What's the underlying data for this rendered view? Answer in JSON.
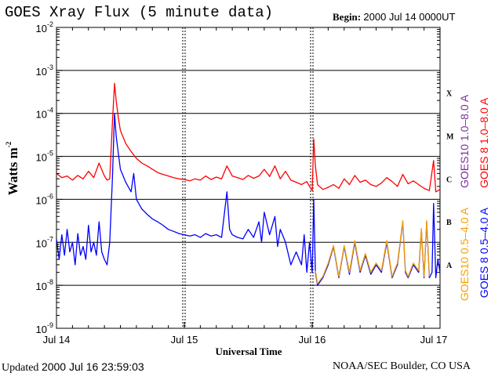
{
  "header": {
    "title": "GOES Xray Flux (5 minute data)",
    "begin_label": "Begin:",
    "begin_value": "2000 Jul 14 0000UT"
  },
  "footer": {
    "updated_label": "Updated",
    "updated_value": "2000 Jul 16 23:59:03",
    "source": "NOAA/SEC Boulder, CO USA"
  },
  "colors": {
    "goes8_long": "#ff0000",
    "goes10_long": "#7b2fa0",
    "goes8_short": "#0000ff",
    "goes10_short": "#f5a000",
    "grid": "#000000"
  },
  "chart_data": {
    "type": "line",
    "title": "GOES Xray Flux (5 minute data)",
    "xlabel": "Universal Time",
    "ylabel": "Watts m",
    "ylabel_sup": "-2",
    "yscale": "log",
    "ylim": [
      1e-09,
      0.01
    ],
    "xlim": [
      0,
      72
    ],
    "x_units": "hours since 2000 Jul 14 0000UT",
    "y_ticks": [
      {
        "base": "10",
        "exp": "-9",
        "value": 1e-09
      },
      {
        "base": "10",
        "exp": "-8",
        "value": 1e-08
      },
      {
        "base": "10",
        "exp": "-7",
        "value": 1e-07
      },
      {
        "base": "10",
        "exp": "-6",
        "value": 1e-06
      },
      {
        "base": "10",
        "exp": "-5",
        "value": 1e-05
      },
      {
        "base": "10",
        "exp": "-4",
        "value": 0.0001
      },
      {
        "base": "10",
        "exp": "-3",
        "value": 0.001
      },
      {
        "base": "10",
        "exp": "-2",
        "value": 0.01
      }
    ],
    "x_ticks": [
      {
        "label": "Jul 14",
        "x": 0
      },
      {
        "label": "Jul 15",
        "x": 24
      },
      {
        "label": "Jul 16",
        "x": 48
      },
      {
        "label": "Jul 17",
        "x": 72
      }
    ],
    "flare_classes": [
      {
        "label": "A",
        "value": 3e-08
      },
      {
        "label": "B",
        "value": 3e-07
      },
      {
        "label": "C",
        "value": 3e-06
      },
      {
        "label": "M",
        "value": 3e-05
      },
      {
        "label": "X",
        "value": 0.0003
      }
    ],
    "legend": [
      {
        "label": "GOES10 1.0–8.0 A",
        "color": "#7b2fa0"
      },
      {
        "label": "GOES 8 1.0–8.0 A",
        "color": "#ff0000"
      },
      {
        "label": "GOES10 0.5–4.0 A",
        "color": "#f5a000"
      },
      {
        "label": "GOES 8 0.5–4.0 A",
        "color": "#0000ff"
      }
    ],
    "series": [
      {
        "name": "GOES 8 1.0-8.0 A",
        "color": "#ff0000",
        "points": [
          [
            0,
            4e-06
          ],
          [
            1,
            3.2e-06
          ],
          [
            2,
            3.5e-06
          ],
          [
            3,
            2.8e-06
          ],
          [
            4,
            3.6e-06
          ],
          [
            5,
            3e-06
          ],
          [
            6,
            4.5e-06
          ],
          [
            7,
            3.2e-06
          ],
          [
            8,
            7e-06
          ],
          [
            9,
            3.5e-06
          ],
          [
            9.5,
            2.8e-06
          ],
          [
            10,
            3e-06
          ],
          [
            10.5,
            6e-05
          ],
          [
            10.9,
            0.0005
          ],
          [
            11.2,
            0.0002
          ],
          [
            11.6,
            8e-05
          ],
          [
            12,
            4e-05
          ],
          [
            13,
            2e-05
          ],
          [
            14,
            1.3e-05
          ],
          [
            15,
            9e-06
          ],
          [
            16,
            7e-06
          ],
          [
            17,
            6e-06
          ],
          [
            18,
            5e-06
          ],
          [
            19,
            4.2e-06
          ],
          [
            20,
            3.8e-06
          ],
          [
            21,
            3.5e-06
          ],
          [
            22,
            3.2e-06
          ],
          [
            23,
            3e-06
          ],
          [
            24,
            2.9e-06
          ],
          [
            25,
            2.7e-06
          ],
          [
            26,
            3e-06
          ],
          [
            27,
            2.8e-06
          ],
          [
            28,
            3.5e-06
          ],
          [
            29,
            2.9e-06
          ],
          [
            30,
            3.3e-06
          ],
          [
            31,
            3e-06
          ],
          [
            32,
            6e-06
          ],
          [
            33,
            3.5e-06
          ],
          [
            34,
            3.2e-06
          ],
          [
            35,
            2.9e-06
          ],
          [
            36,
            3.6e-06
          ],
          [
            37,
            3.1e-06
          ],
          [
            38,
            3.5e-06
          ],
          [
            39,
            5e-06
          ],
          [
            40,
            3.4e-06
          ],
          [
            41,
            6e-06
          ],
          [
            42,
            3e-06
          ],
          [
            43,
            4.5e-06
          ],
          [
            44,
            2.8e-06
          ],
          [
            45,
            2.5e-06
          ],
          [
            46,
            2.2e-06
          ],
          [
            47,
            2.6e-06
          ],
          [
            47.5,
            2e-06
          ],
          [
            48,
            1.6e-06
          ],
          [
            48.3,
            2.5e-05
          ],
          [
            48.6,
            6e-06
          ],
          [
            49,
            2.2e-06
          ],
          [
            50,
            1.7e-06
          ],
          [
            51,
            1.9e-06
          ],
          [
            52,
            2.2e-06
          ],
          [
            53,
            1.8e-06
          ],
          [
            54,
            3e-06
          ],
          [
            55,
            2.2e-06
          ],
          [
            56,
            3.6e-06
          ],
          [
            57,
            2.5e-06
          ],
          [
            58,
            2.8e-06
          ],
          [
            59,
            2.2e-06
          ],
          [
            60,
            2e-06
          ],
          [
            61,
            2.4e-06
          ],
          [
            62,
            3.2e-06
          ],
          [
            63,
            2.6e-06
          ],
          [
            64,
            2e-06
          ],
          [
            65,
            3.8e-06
          ],
          [
            66,
            2.3e-06
          ],
          [
            67,
            2.7e-06
          ],
          [
            68,
            2.2e-06
          ],
          [
            69,
            1.8e-06
          ],
          [
            70,
            1.6e-06
          ],
          [
            70.8,
            8e-06
          ],
          [
            71.2,
            1.5e-06
          ],
          [
            72,
            1.7e-06
          ]
        ]
      },
      {
        "name": "GOES 8 0.5-4.0 A",
        "color": "#0000ff",
        "points": [
          [
            0,
            1.2e-07
          ],
          [
            0.5,
            4e-08
          ],
          [
            1,
            1.5e-07
          ],
          [
            1.5,
            5e-08
          ],
          [
            2,
            2e-07
          ],
          [
            2.5,
            6e-08
          ],
          [
            3,
            1e-07
          ],
          [
            3.5,
            3e-08
          ],
          [
            4,
            1.6e-07
          ],
          [
            4.5,
            5e-08
          ],
          [
            5,
            8e-08
          ],
          [
            5.5,
            4e-08
          ],
          [
            6,
            2.5e-07
          ],
          [
            6.5,
            6e-08
          ],
          [
            7,
            1e-07
          ],
          [
            7.5,
            5e-08
          ],
          [
            8,
            3e-07
          ],
          [
            8.5,
            6e-08
          ],
          [
            9,
            4e-08
          ],
          [
            9.5,
            3e-08
          ],
          [
            10,
            1e-07
          ],
          [
            10.5,
            3e-06
          ],
          [
            10.9,
            0.0001
          ],
          [
            11.2,
            3e-05
          ],
          [
            11.6,
            1.2e-05
          ],
          [
            12,
            5e-06
          ],
          [
            13,
            2.5e-06
          ],
          [
            14,
            1.5e-06
          ],
          [
            14.5,
            4e-06
          ],
          [
            15,
            1e-06
          ],
          [
            16,
            6e-07
          ],
          [
            17,
            4.5e-07
          ],
          [
            18,
            3.5e-07
          ],
          [
            19,
            3e-07
          ],
          [
            20,
            2.5e-07
          ],
          [
            21,
            2e-07
          ],
          [
            22,
            1.8e-07
          ],
          [
            23,
            1.6e-07
          ],
          [
            24,
            1.5e-07
          ],
          [
            25,
            1.4e-07
          ],
          [
            26,
            1.5e-07
          ],
          [
            27,
            1.3e-07
          ],
          [
            28,
            1.6e-07
          ],
          [
            29,
            1.4e-07
          ],
          [
            30,
            1.5e-07
          ],
          [
            31,
            1.3e-07
          ],
          [
            32,
            1.5e-06
          ],
          [
            32.5,
            2e-07
          ],
          [
            33,
            1.5e-07
          ],
          [
            34,
            1.3e-07
          ],
          [
            35,
            1.2e-07
          ],
          [
            36,
            2e-07
          ],
          [
            37,
            1.3e-07
          ],
          [
            38,
            3e-07
          ],
          [
            38.5,
            1e-07
          ],
          [
            39,
            5e-07
          ],
          [
            40,
            1.5e-07
          ],
          [
            41,
            4e-07
          ],
          [
            41.5,
            8e-08
          ],
          [
            42,
            2e-07
          ],
          [
            43,
            1e-07
          ],
          [
            44,
            3e-08
          ],
          [
            45,
            6e-08
          ],
          [
            46,
            3e-08
          ],
          [
            46.5,
            1.5e-07
          ],
          [
            47,
            2e-08
          ],
          [
            47.5,
            1e-07
          ],
          [
            48,
            2e-08
          ],
          [
            48.3,
            1e-06
          ],
          [
            48.6,
            2e-08
          ],
          [
            49,
            1e-08
          ],
          [
            50,
            1.5e-08
          ],
          [
            51,
            3e-08
          ],
          [
            52,
            8e-08
          ],
          [
            53,
            1.5e-08
          ],
          [
            54,
            8e-08
          ],
          [
            55,
            1.8e-08
          ],
          [
            56,
            1e-07
          ],
          [
            57,
            2e-08
          ],
          [
            58,
            5e-08
          ],
          [
            59,
            1.8e-08
          ],
          [
            60,
            3e-08
          ],
          [
            61,
            2e-08
          ],
          [
            62,
            1e-07
          ],
          [
            63,
            1.5e-08
          ],
          [
            64,
            3e-08
          ],
          [
            65,
            3e-07
          ],
          [
            65.5,
            2e-08
          ],
          [
            66,
            1.5e-08
          ],
          [
            67,
            3e-08
          ],
          [
            68,
            2e-08
          ],
          [
            68.5,
            2e-07
          ],
          [
            69,
            1.5e-08
          ],
          [
            69.5,
            3e-07
          ],
          [
            70,
            1.5e-08
          ],
          [
            70.5,
            2e-08
          ],
          [
            70.8,
            8e-07
          ],
          [
            71.2,
            1.5e-08
          ],
          [
            71.6,
            4e-08
          ],
          [
            72,
            2e-08
          ]
        ]
      },
      {
        "name": "GOES10 0.5-4.0 A",
        "color": "#f5a000",
        "points": [
          [
            48.6,
            2.2e-08
          ],
          [
            49,
            1.1e-08
          ],
          [
            50,
            1.6e-08
          ],
          [
            51,
            3.3e-08
          ],
          [
            52,
            8.5e-08
          ],
          [
            53,
            1.6e-08
          ],
          [
            54,
            8.5e-08
          ],
          [
            55,
            2e-08
          ],
          [
            56,
            1.1e-07
          ],
          [
            57,
            2.2e-08
          ],
          [
            58,
            5.5e-08
          ],
          [
            59,
            2e-08
          ],
          [
            60,
            3.3e-08
          ],
          [
            61,
            2.2e-08
          ],
          [
            62,
            1.1e-07
          ],
          [
            63,
            1.6e-08
          ],
          [
            64,
            3.3e-08
          ],
          [
            65,
            3.2e-07
          ],
          [
            65.5,
            2.2e-08
          ],
          [
            66,
            1.6e-08
          ],
          [
            67,
            3.3e-08
          ],
          [
            68,
            2.2e-08
          ],
          [
            68.5,
            2.1e-07
          ],
          [
            69,
            1.6e-08
          ],
          [
            69.5,
            3.2e-07
          ],
          [
            70,
            1.6e-08
          ]
        ]
      }
    ]
  }
}
